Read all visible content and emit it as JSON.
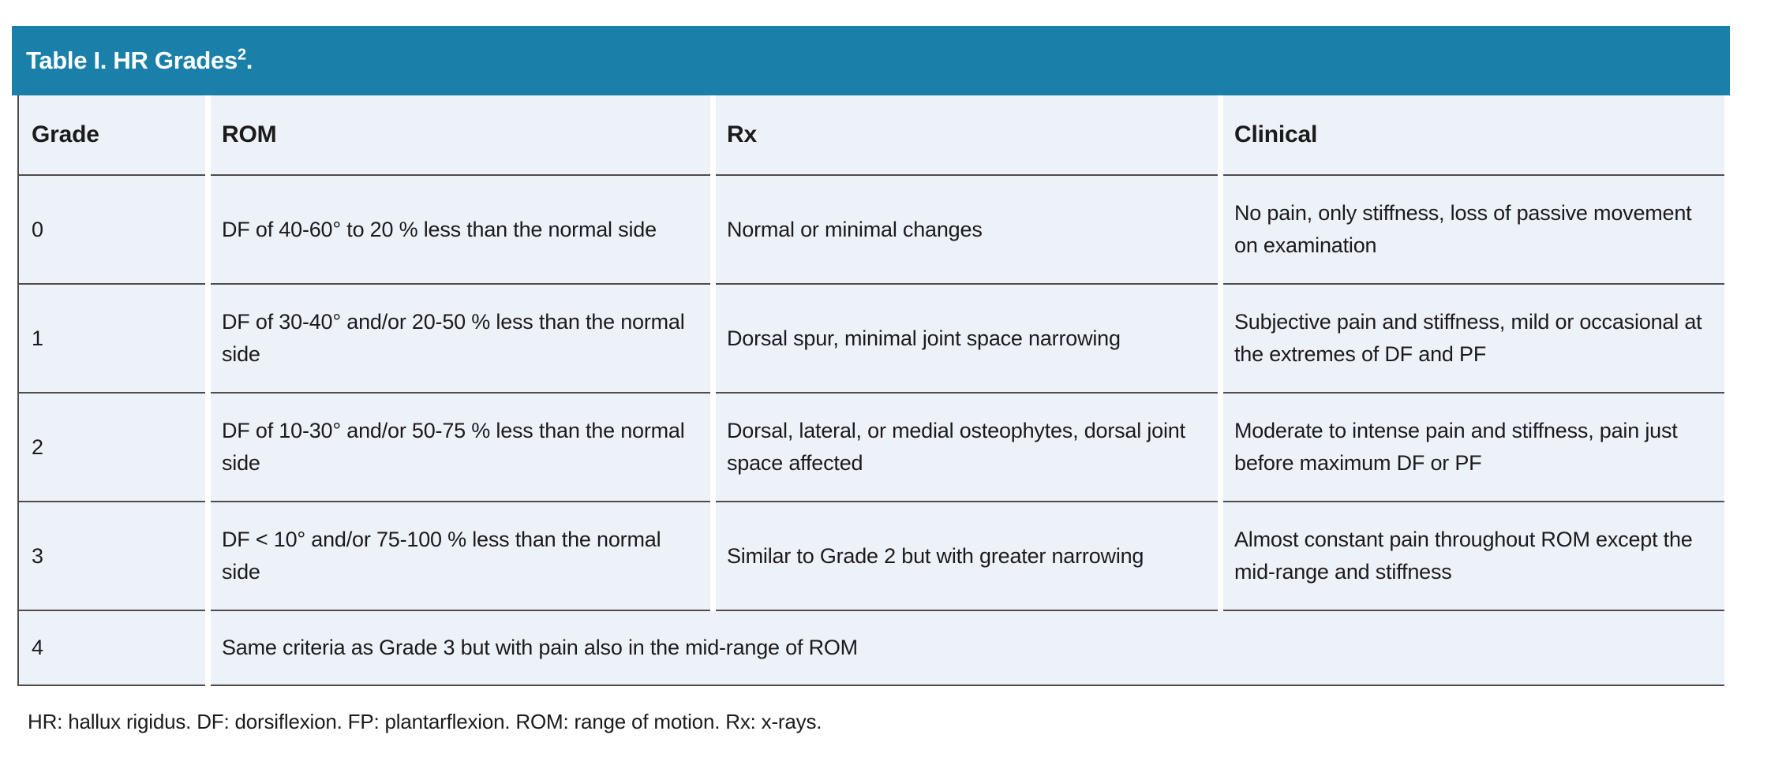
{
  "table": {
    "title_main": "Table I. HR Grades",
    "title_sup": "2",
    "title_period": ".",
    "columns": {
      "grade": "Grade",
      "rom": "ROM",
      "rx": "Rx",
      "clinical": "Clinical"
    },
    "rows": [
      {
        "grade": "0",
        "rom": "DF of 40-60° to 20 % less than the normal side",
        "rx": "Normal or minimal changes",
        "clinical": "No pain, only stiffness, loss of passive movement on examination"
      },
      {
        "grade": "1",
        "rom": "DF of 30-40° and/or 20-50 % less than the normal side",
        "rx": "Dorsal spur, minimal joint space narrowing",
        "clinical": "Subjective pain and stiffness, mild or occasional at the extremes of DF and PF"
      },
      {
        "grade": "2",
        "rom": "DF of 10-30° and/or 50-75 % less than the normal side",
        "rx": "Dorsal, lateral, or medial osteophytes, dorsal joint space affected",
        "clinical": "Moderate to intense pain and stiffness, pain just before maximum DF or PF"
      },
      {
        "grade": "3",
        "rom": "DF < 10° and/or 75-100 % less than the normal side",
        "rx": "Similar to Grade 2 but with greater narrowing",
        "clinical": "Almost constant pain throughout ROM except the mid-range and stiffness"
      }
    ],
    "spanning_row": {
      "grade": "4",
      "text": "Same criteria as Grade 3 but with pain also in the mid-range of ROM"
    },
    "footnote": "HR: hallux rigidus. DF: dorsiflexion. FP: plantarflexion. ROM: range of motion. Rx: x-rays.",
    "colors": {
      "header_bar": "#1A80AA",
      "row_background": "#EDF1F8",
      "border": "#4D4D4D",
      "text": "#1B1B1B"
    }
  }
}
